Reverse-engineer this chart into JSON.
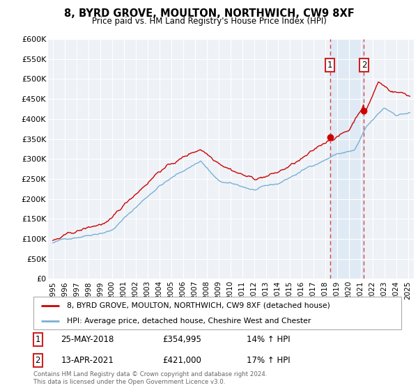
{
  "title": "8, BYRD GROVE, MOULTON, NORTHWICH, CW9 8XF",
  "subtitle": "Price paid vs. HM Land Registry's House Price Index (HPI)",
  "background_color": "#ffffff",
  "plot_bg_color": "#eef2f7",
  "grid_color": "#ffffff",
  "red_line_color": "#cc0000",
  "blue_line_color": "#7aafd4",
  "vline_color": "#dd4444",
  "shade_color": "#dce8f5",
  "legend_label_red": "8, BYRD GROVE, MOULTON, NORTHWICH, CW9 8XF (detached house)",
  "legend_label_blue": "HPI: Average price, detached house, Cheshire West and Chester",
  "event1_label": "1",
  "event2_label": "2",
  "event1_date": "25-MAY-2018",
  "event1_price": "£354,995",
  "event1_pct": "14% ↑ HPI",
  "event2_date": "13-APR-2021",
  "event2_price": "£421,000",
  "event2_pct": "17% ↑ HPI",
  "footer": "Contains HM Land Registry data © Crown copyright and database right 2024.\nThis data is licensed under the Open Government Licence v3.0.",
  "ylim": [
    0,
    600000
  ],
  "ytick_labels": [
    "£0",
    "£50K",
    "£100K",
    "£150K",
    "£200K",
    "£250K",
    "£300K",
    "£350K",
    "£400K",
    "£450K",
    "£500K",
    "£550K",
    "£600K"
  ],
  "event1_year": 2018.42,
  "event1_price_val": 354995,
  "event2_year": 2021.29,
  "event2_price_val": 421000
}
